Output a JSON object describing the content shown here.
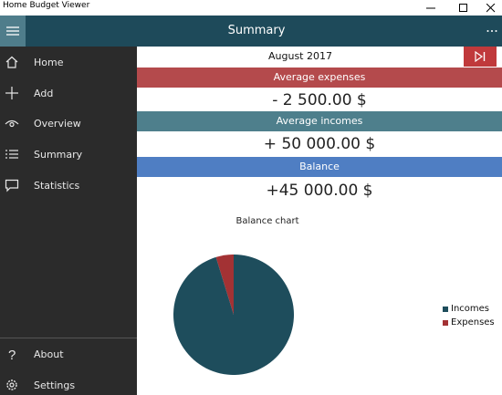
{
  "window": {
    "title": "Home Budget Viewer"
  },
  "header": {
    "title": "Summary"
  },
  "sidebar": {
    "items": [
      {
        "label": "Home",
        "icon": "home-icon"
      },
      {
        "label": "Add",
        "icon": "plus-icon"
      },
      {
        "label": "Overview",
        "icon": "eye-icon"
      },
      {
        "label": "Summary",
        "icon": "list-icon"
      },
      {
        "label": "Statistics",
        "icon": "comment-icon"
      }
    ],
    "bottom_items": [
      {
        "label": "About",
        "icon": "question-icon"
      },
      {
        "label": "Settings",
        "icon": "gear-icon"
      }
    ]
  },
  "summary": {
    "month": "August 2017",
    "expenses_label": "Average expenses",
    "expenses_value": "- 2 500.00 $",
    "incomes_label": "Average incomes",
    "incomes_value": "+ 50 000.00 $",
    "balance_label": "Balance",
    "balance_value": "+45 000.00 $"
  },
  "colors": {
    "header": "#1e4a5a",
    "sidebar": "#2b2b2b",
    "expenses": "#b44a4c",
    "incomes": "#4e7f8c",
    "balance": "#4f7ec3",
    "accent_red": "#c0393b"
  },
  "chart_data": {
    "type": "pie",
    "title": "Balance chart",
    "labels": [
      "Incomes",
      "Expenses"
    ],
    "values": [
      50000,
      2500
    ],
    "colors": [
      "#1e4d5c",
      "#a33234"
    ],
    "legend": "right"
  }
}
